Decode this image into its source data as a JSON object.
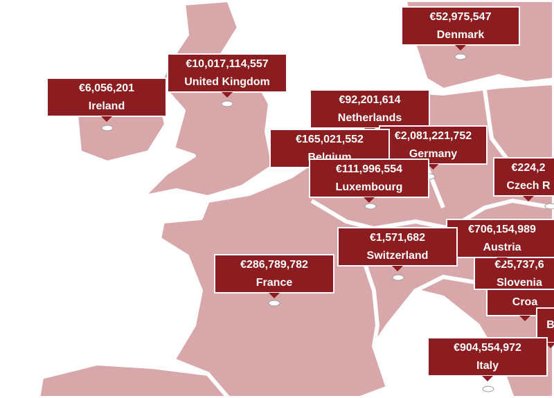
{
  "markers": [
    {
      "value": "€92,201,614",
      "name": "Netherlands"
    },
    {
      "value": "€2,081,221,752",
      "name": "Germany"
    },
    {
      "value": "€165,021,552",
      "name": "Belgium"
    },
    {
      "value": "€111,996,554",
      "name": "Luxembourg"
    },
    {
      "value": "€52,975,547",
      "name": "Denmark"
    },
    {
      "value": "€10,017,114,557",
      "name": "United Kingdom"
    },
    {
      "value": "€6,056,201",
      "name": "Ireland"
    },
    {
      "value": "€224,2",
      "name": "Czech R"
    },
    {
      "value": "€25,737,6",
      "name": "Slovenia"
    },
    {
      "value": "",
      "name": "Croa"
    },
    {
      "value": "",
      "name": "B"
    },
    {
      "value": "€706,154,989",
      "name": "Austria"
    },
    {
      "value": "€1,571,682",
      "name": "Switzerland"
    },
    {
      "value": "€286,789,782",
      "name": "France"
    },
    {
      "value": "€904,554,972",
      "name": "Italy"
    }
  ]
}
